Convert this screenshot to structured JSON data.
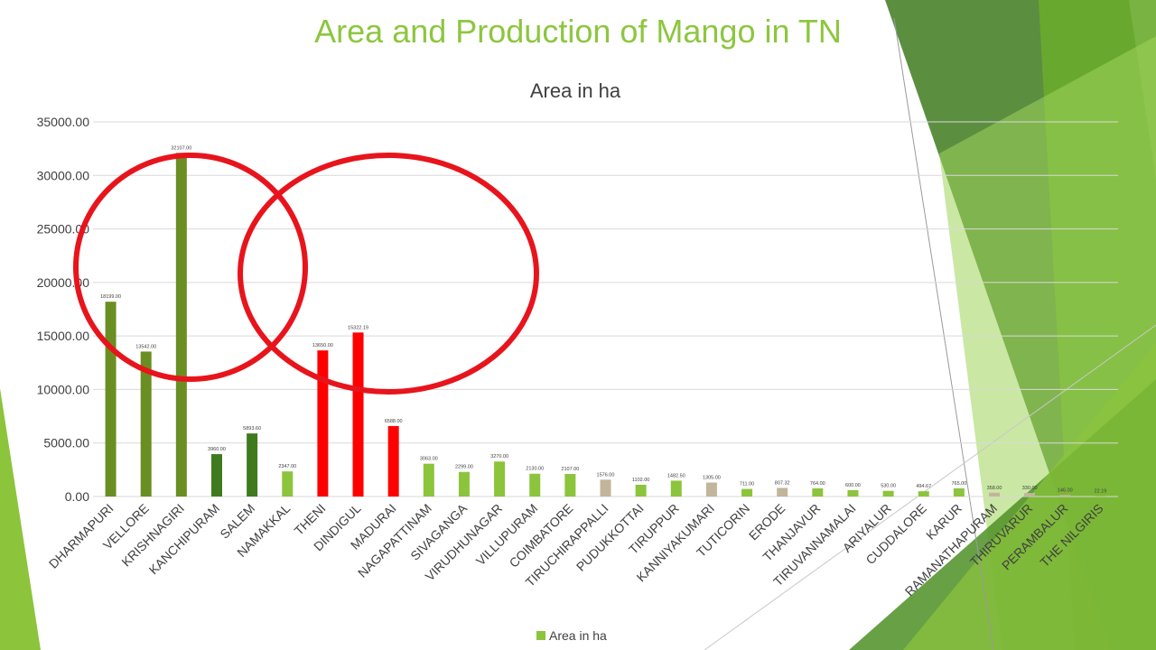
{
  "slide": {
    "title": "Area and Production of Mango in TN"
  },
  "colors": {
    "title": "#8dc63f",
    "bar_dark_green": "#6b8e23",
    "bar_forest_green": "#3f7a1f",
    "bar_light_green": "#8cc43c",
    "bar_red": "#ff0000",
    "bar_tan": "#c2b59b",
    "circle": "#e8141c",
    "deco_green": "#5e9e2c"
  },
  "chart_data": {
    "type": "bar",
    "title": "Area in ha",
    "xlabel": "",
    "ylabel": "",
    "ylim": [
      0,
      35000
    ],
    "yticks": [
      "0.00",
      "5000.00",
      "10000.00",
      "15000.00",
      "20000.00",
      "25000.00",
      "30000.00",
      "35000.00"
    ],
    "grid": true,
    "legend_position": "bottom",
    "categories": [
      "DHARMAPURI",
      "VELLORE",
      "KRISHNAGIRI",
      "KANCHIPURAM",
      "SALEM",
      "NAMAKKAL",
      "THENI",
      "DINDIGUL",
      "MADURAI",
      "NAGAPATTINAM",
      "SIVAGANGA",
      "VIRUDHUNAGAR",
      "VILLUPURAM",
      "COIMBATORE",
      "TIRUCHIRAPPALLI",
      "PUDUKKOTTAI",
      "TIRUPPUR",
      "KANNIYAKUMARI",
      "TUTICORIN",
      "ERODE",
      "THANJAVUR",
      "TIRUVANNAMALAI",
      "ARIYALUR",
      "CUDDALORE",
      "KARUR",
      "RAMANATHAPURAM",
      "THIRUVARUR",
      "PERAMBALUR",
      "THE NILGIRIS"
    ],
    "series": [
      {
        "name": "Area in ha",
        "values": [
          18199.0,
          13542.0,
          32107.0,
          3960.0,
          5893.6,
          2347.0,
          13650.0,
          15322.19,
          6588.0,
          3063.0,
          2299.0,
          3270.0,
          2130.0,
          2107.0,
          1576.0,
          1102.0,
          1482.5,
          1305.0,
          711.0,
          807.32,
          764.0,
          600.0,
          530.0,
          494.67,
          765.0,
          358.0,
          330.0,
          146.0,
          22.19
        ],
        "data_labels": [
          "18199.00",
          "13542.00",
          "32107.00",
          "3960.00",
          "5893.60",
          "2347.00",
          "13650.00",
          "15322.19",
          "6588.00",
          "3063.00",
          "2299.00",
          "3270.00",
          "2130.00",
          "2107.00",
          "1576.00",
          "1102.00",
          "1482.50",
          "1305.00",
          "711.00",
          "807.32",
          "764.00",
          "600.00",
          "530.00",
          "494.67",
          "765.00",
          "358.00",
          "330.00",
          "146.00",
          "22.19"
        ],
        "bar_colors": [
          "#6b8e23",
          "#6b8e23",
          "#6b8e23",
          "#3f7a1f",
          "#3f7a1f",
          "#8cc43c",
          "#ff0000",
          "#ff0000",
          "#ff0000",
          "#8cc43c",
          "#8cc43c",
          "#8cc43c",
          "#8cc43c",
          "#8cc43c",
          "#c2b59b",
          "#8cc43c",
          "#8cc43c",
          "#c2b59b",
          "#8cc43c",
          "#c2b59b",
          "#8cc43c",
          "#8cc43c",
          "#8cc43c",
          "#8cc43c",
          "#8cc43c",
          "#c2b59b",
          "#c2b59b",
          "#c2b59b",
          "#8cc43c"
        ]
      }
    ],
    "legend": [
      {
        "label": "Area in ha",
        "color": "#8cc43c"
      }
    ],
    "annotations": [
      {
        "type": "ellipse",
        "color": "#e8141c",
        "marks": "DHARMAPURI, VELLORE, KRISHNAGIRI"
      },
      {
        "type": "ellipse",
        "color": "#e8141c",
        "marks": "THENI, DINDIGUL, MADURAI"
      }
    ]
  }
}
